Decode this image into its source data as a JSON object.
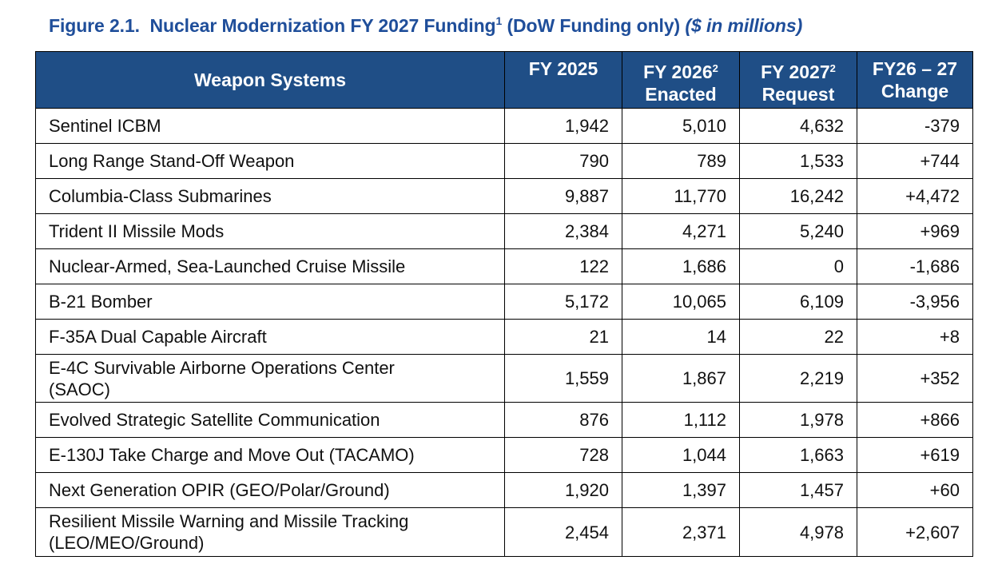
{
  "figure": {
    "label": "Figure 2.1.",
    "title": "Nuclear Modernization FY 2027 Funding",
    "title_footnote": "1",
    "scope": "(DoW Funding only)",
    "units": "($ in millions)"
  },
  "table": {
    "headers": {
      "weapon_systems": "Weapon Systems",
      "fy2025": "FY 2025",
      "fy2026_line1": "FY 2026",
      "fy2026_footnote": "2",
      "fy2026_line2": "Enacted",
      "fy2027_line1": "FY 2027",
      "fy2027_footnote": "2",
      "fy2027_line2": "Request",
      "change_line1": "FY26 – 27",
      "change_line2": "Change"
    },
    "rows": [
      {
        "system": "Sentinel ICBM",
        "fy2025": "1,942",
        "fy2026": "5,010",
        "fy2027": "4,632",
        "change": "-379"
      },
      {
        "system": "Long Range Stand-Off Weapon",
        "fy2025": "790",
        "fy2026": "789",
        "fy2027": "1,533",
        "change": "+744"
      },
      {
        "system": "Columbia-Class Submarines",
        "fy2025": "9,887",
        "fy2026": "11,770",
        "fy2027": "16,242",
        "change": "+4,472"
      },
      {
        "system": "Trident II Missile Mods",
        "fy2025": "2,384",
        "fy2026": "4,271",
        "fy2027": "5,240",
        "change": "+969"
      },
      {
        "system": "Nuclear-Armed, Sea-Launched Cruise Missile",
        "fy2025": "122",
        "fy2026": "1,686",
        "fy2027": "0",
        "change": "-1,686"
      },
      {
        "system": "B-21 Bomber",
        "fy2025": "5,172",
        "fy2026": "10,065",
        "fy2027": "6,109",
        "change": "-3,956"
      },
      {
        "system": "F-35A Dual Capable Aircraft",
        "fy2025": "21",
        "fy2026": "14",
        "fy2027": "22",
        "change": "+8"
      },
      {
        "system_line1": "E-4C Survivable Airborne Operations Center",
        "system_line2": "(SAOC)",
        "fy2025": "1,559",
        "fy2026": "1,867",
        "fy2027": "2,219",
        "change": "+352"
      },
      {
        "system": "Evolved Strategic Satellite Communication",
        "fy2025": "876",
        "fy2026": "1,112",
        "fy2027": "1,978",
        "change": "+866"
      },
      {
        "system": "E-130J Take Charge and Move Out (TACAMO)",
        "fy2025": "728",
        "fy2026": "1,044",
        "fy2027": "1,663",
        "change": "+619"
      },
      {
        "system": "Next Generation OPIR (GEO/Polar/Ground)",
        "fy2025": "1,920",
        "fy2026": "1,397",
        "fy2027": "1,457",
        "change": "+60"
      },
      {
        "system_line1": "Resilient Missile Warning and Missile Tracking",
        "system_line2": "(LEO/MEO/Ground)",
        "fy2025": "2,454",
        "fy2026": "2,371",
        "fy2027": "4,978",
        "change": "+2,607"
      }
    ]
  }
}
